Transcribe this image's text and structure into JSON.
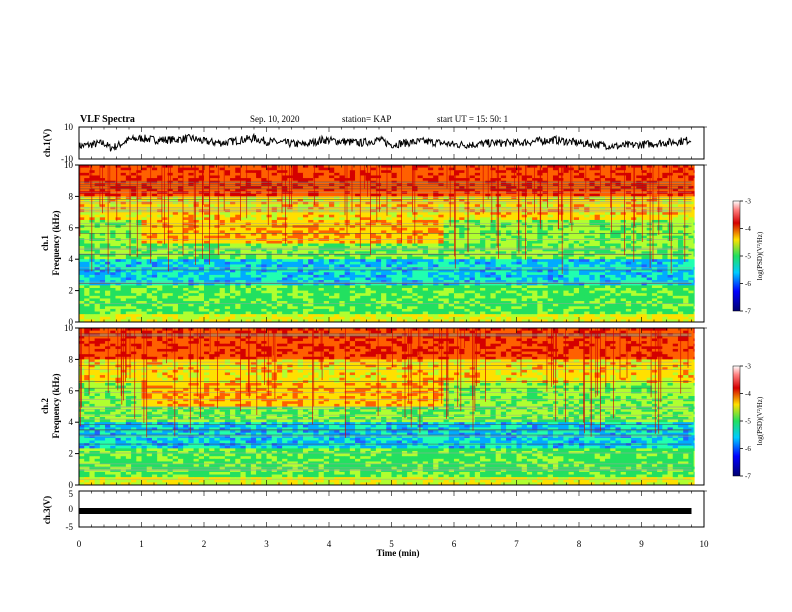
{
  "header": {
    "title": "VLF Spectra",
    "date": "Sep. 10, 2020",
    "station": "station= KAP",
    "start": "start  UT  =   15: 50: 1"
  },
  "colors": {
    "high": "#d40000",
    "mid_high": "#ffe000",
    "mid": "#22e060",
    "mid_low": "#00aaff",
    "low": "#000070",
    "trace": "#000000"
  },
  "chart_data": [
    {
      "type": "line",
      "panel": "ch1-waveform",
      "ylabel": "ch.1(V)",
      "ylim": [
        -10,
        10
      ],
      "yticks": [
        "10",
        "-10"
      ],
      "xlim": [
        0,
        10
      ],
      "series": [
        {
          "x": [
            0,
            0.2,
            0.4,
            0.5,
            0.6,
            0.8,
            1.0,
            1.2,
            1.5,
            1.8,
            2.0,
            2.3,
            2.6,
            2.8,
            3.0,
            3.3,
            3.6,
            3.9,
            4.2,
            4.5,
            4.8,
            5.0,
            5.2,
            5.5,
            5.8,
            6.0,
            6.3,
            6.6,
            7.0,
            7.3,
            7.6,
            7.8,
            8.0,
            8.3,
            8.6,
            9.0,
            9.3,
            9.6,
            9.8
          ],
          "y": [
            -2,
            -1,
            0,
            -3,
            -2,
            2,
            3,
            2,
            2,
            3,
            1,
            0,
            2,
            3,
            1,
            0,
            -1,
            2,
            1,
            0,
            2,
            -1,
            0,
            1,
            0,
            -1,
            -1,
            0,
            0,
            1,
            2,
            1,
            0,
            -1,
            -2,
            -1,
            0,
            1,
            2
          ]
        }
      ]
    },
    {
      "type": "heatmap",
      "panel": "ch1-spectrogram",
      "ylabel": "ch.1\nFrequency (kHz)",
      "ylim": [
        0,
        10
      ],
      "yticks": [
        "0",
        "2",
        "4",
        "6",
        "8",
        "10"
      ],
      "xlim": [
        0,
        10
      ],
      "colorbar": {
        "label": "log(PSD)(V²/Hz)",
        "range": [
          -7,
          -3
        ],
        "ticks": [
          "-3",
          "-4",
          "-5",
          "-6",
          "-7"
        ]
      }
    },
    {
      "type": "heatmap",
      "panel": "ch2-spectrogram",
      "ylabel": "ch.2\nFrequency (kHz)",
      "ylim": [
        0,
        10
      ],
      "yticks": [
        "0",
        "2",
        "4",
        "6",
        "8",
        "10"
      ],
      "xlim": [
        0,
        10
      ],
      "colorbar": {
        "label": "log(PSD)(V²/Hz)",
        "range": [
          -7,
          -3
        ],
        "ticks": [
          "-3",
          "-4",
          "-5",
          "-6",
          "-7"
        ]
      }
    },
    {
      "type": "line",
      "panel": "ch3-waveform",
      "ylabel": "ch.3(V)",
      "ylim": [
        -5,
        5
      ],
      "yticks": [
        "5",
        "0",
        "-5"
      ],
      "xlim": [
        0,
        10
      ],
      "xlabel": "Time (min)",
      "xticks": [
        "0",
        "1",
        "2",
        "3",
        "4",
        "5",
        "6",
        "7",
        "8",
        "9",
        "10"
      ],
      "series": [
        {
          "x": [
            0,
            9.8
          ],
          "y": [
            0,
            0
          ]
        }
      ]
    }
  ]
}
